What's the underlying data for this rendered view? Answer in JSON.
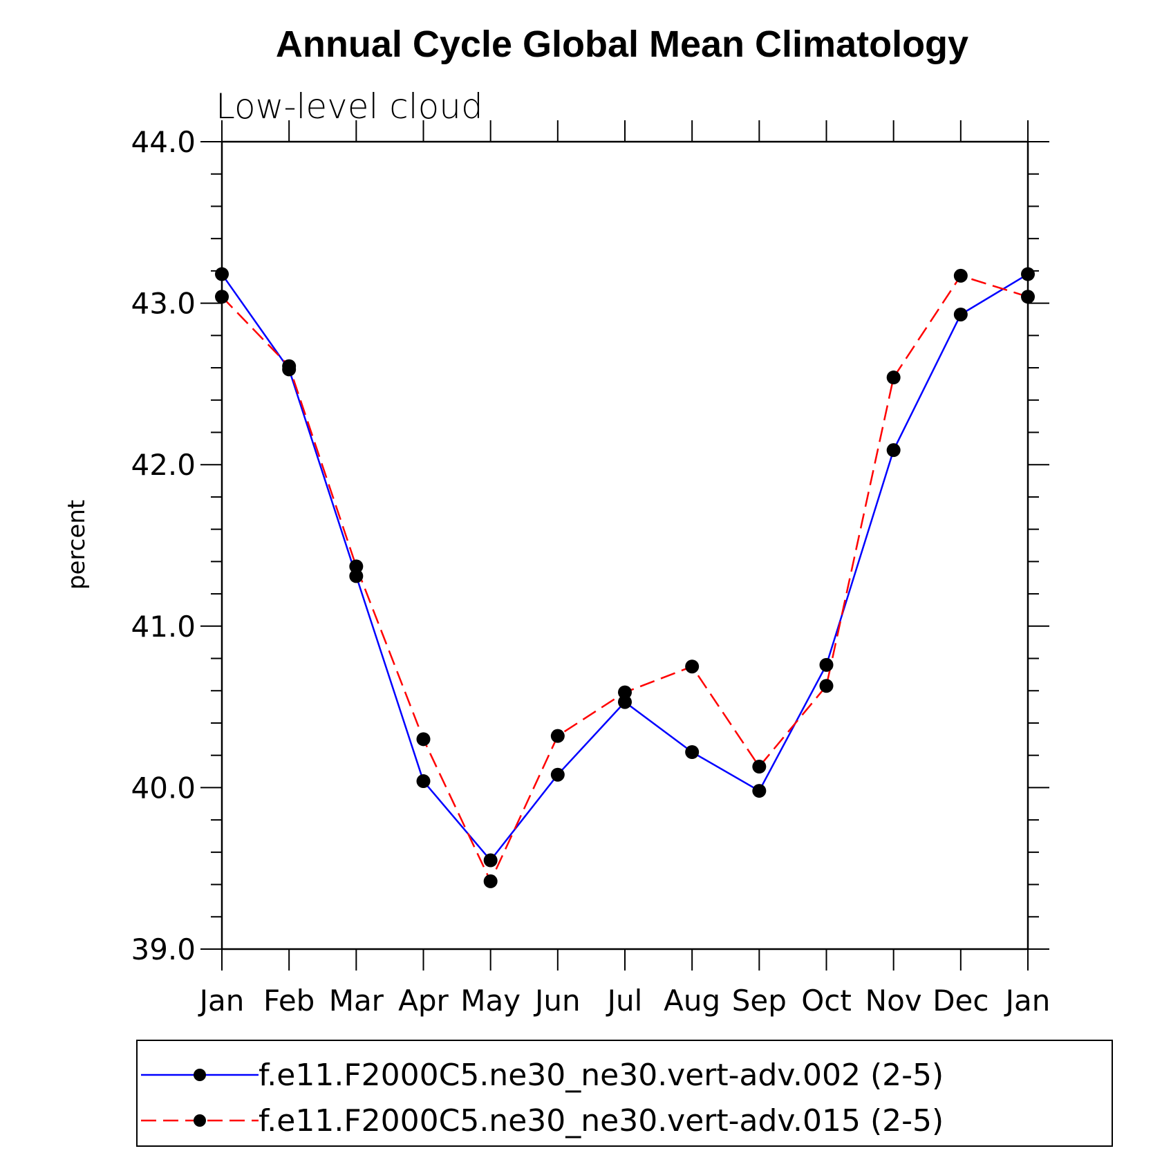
{
  "chart_data": {
    "type": "line",
    "title": "Annual Cycle Global Mean Climatology",
    "subtitle": "Low-level cloud",
    "xlabel": "",
    "ylabel": "percent",
    "categories": [
      "Jan",
      "Feb",
      "Mar",
      "Apr",
      "May",
      "Jun",
      "Jul",
      "Aug",
      "Sep",
      "Oct",
      "Nov",
      "Dec",
      "Jan"
    ],
    "ylim": [
      39.0,
      44.0
    ],
    "yticks": [
      "39.0",
      "40.0",
      "41.0",
      "42.0",
      "43.0",
      "44.0"
    ],
    "grid": false,
    "legend_position": "bottom",
    "series": [
      {
        "name": "f.e11.F2000C5.ne30_ne30.vert-adv.002 (2-5)",
        "color": "#0000ff",
        "dash": "solid",
        "values": [
          43.18,
          42.59,
          41.31,
          40.04,
          39.55,
          40.08,
          40.53,
          40.22,
          39.98,
          40.76,
          42.09,
          42.93,
          43.18
        ]
      },
      {
        "name": "f.e11.F2000C5.ne30_ne30.vert-adv.015 (2-5)",
        "color": "#ff0000",
        "dash": "dashed",
        "values": [
          43.04,
          42.61,
          41.37,
          40.3,
          39.42,
          40.32,
          40.59,
          40.75,
          40.13,
          40.63,
          42.54,
          43.17,
          43.04
        ]
      }
    ]
  }
}
